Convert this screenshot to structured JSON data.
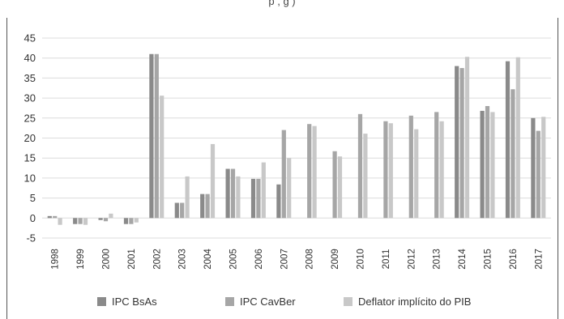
{
  "chart_data": {
    "type": "bar",
    "title_fragment": "p        ,    g     )",
    "categories": [
      "1998",
      "1999",
      "2000",
      "2001",
      "2002",
      "2003",
      "2004",
      "2005",
      "2006",
      "2007",
      "2008",
      "2009",
      "2010",
      "2011",
      "2012",
      "2013",
      "2014",
      "2015",
      "2016",
      "2017"
    ],
    "series": [
      {
        "name": "IPC BsAs",
        "color": "#8a8a8a",
        "values": [
          0.5,
          -1.5,
          -0.5,
          -1.5,
          41,
          3.8,
          6,
          12.3,
          9.8,
          8.4,
          null,
          null,
          null,
          null,
          null,
          null,
          38,
          26.8,
          39.2,
          25
        ]
      },
      {
        "name": "IPC CavBer",
        "color": "#a6a6a6",
        "values": [
          0.5,
          -1.5,
          -0.8,
          -1.5,
          41,
          3.8,
          6,
          12.3,
          9.8,
          22,
          23.5,
          16.7,
          26,
          24.2,
          25.6,
          26.5,
          37.5,
          28,
          32.2,
          21.8
        ]
      },
      {
        "name": "Deflator implícito do PIB",
        "color": "#c8c8c8",
        "values": [
          -1.7,
          -1.7,
          1.1,
          -1.1,
          30.6,
          10.4,
          18.5,
          10.4,
          13.9,
          15,
          23,
          15.4,
          21.1,
          23.7,
          22.2,
          24.2,
          40.3,
          26.5,
          40.2,
          25.3
        ]
      }
    ],
    "ylim": [
      -5,
      45
    ],
    "yticks": [
      -5,
      0,
      5,
      10,
      15,
      20,
      25,
      30,
      35,
      40,
      45
    ],
    "grid": true,
    "legend_position": "bottom"
  }
}
